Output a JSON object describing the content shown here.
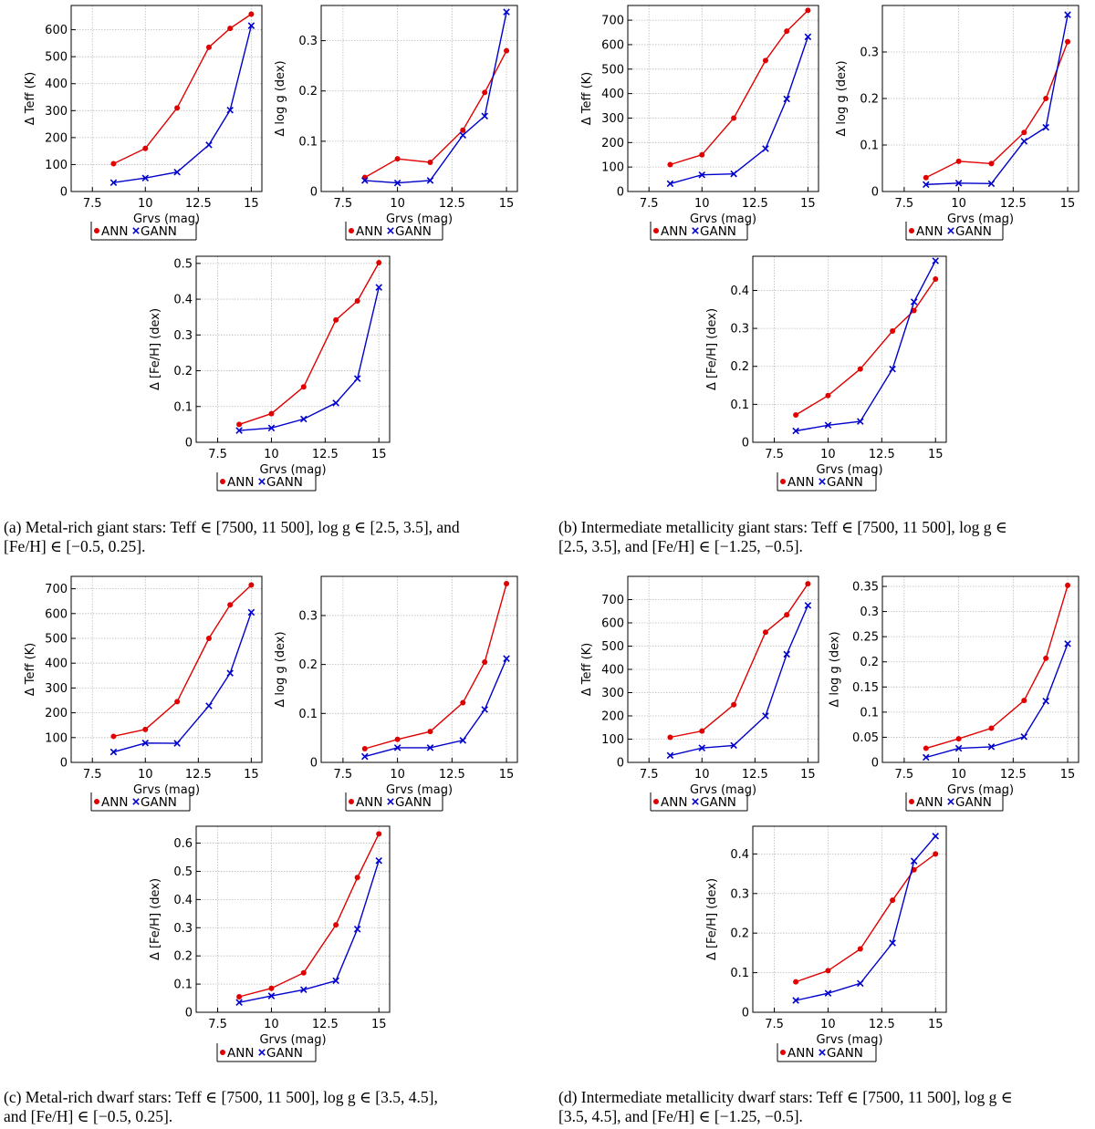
{
  "colors": {
    "ann": "#e00000",
    "gann": "#0000cc",
    "grid": "#bbbbbb",
    "axis": "#000000"
  },
  "captions": {
    "a": [
      "(a) Metal-rich giant stars: Teff ∈ [7500, 11 500], log g ∈ [2.5, 3.5], and",
      "[Fe/H] ∈ [−0.5, 0.25]."
    ],
    "b": [
      "(b) Intermediate metallicity giant stars: Teff ∈ [7500, 11 500], log g ∈",
      "[2.5, 3.5], and [Fe/H] ∈ [−1.25, −0.5]."
    ],
    "c": [
      "(c) Metal-rich dwarf stars: Teff ∈ [7500, 11 500], log g ∈ [3.5, 4.5],",
      "and [Fe/H] ∈ [−0.5, 0.25]."
    ],
    "d": [
      "(d) Intermediate metallicity dwarf stars: Teff ∈ [7500, 11 500], log g ∈",
      "[3.5, 4.5], and [Fe/H] ∈ [−1.25, −0.5]."
    ]
  },
  "chart_data": [
    {
      "id": "a-teff",
      "panel": "a",
      "type": "line",
      "xlabel": "Grvs (mag)",
      "ylabel": "Δ Teff (K)",
      "xlim": [
        6.5,
        15.5
      ],
      "ylim": [
        0,
        690
      ],
      "xticks": [
        7.5,
        10,
        12.5,
        15
      ],
      "xtick_labels": [
        "7.5",
        "10",
        "12.5",
        "15"
      ],
      "yticks": [
        0,
        100,
        200,
        300,
        400,
        500,
        600
      ],
      "ytick_labels": [
        "0",
        "100",
        "200",
        "300",
        "400",
        "500",
        "600"
      ],
      "x": [
        8.5,
        10,
        11.5,
        13,
        14,
        15
      ],
      "series": [
        {
          "name": "ANN",
          "values": [
            103,
            160,
            310,
            535,
            605,
            658
          ]
        },
        {
          "name": "GANN",
          "values": [
            33,
            50,
            72,
            173,
            302,
            615
          ]
        }
      ],
      "legend": [
        "ANN",
        "GANN"
      ]
    },
    {
      "id": "a-logg",
      "panel": "a",
      "type": "line",
      "xlabel": "Grvs (mag)",
      "ylabel": "Δ log g (dex)",
      "xlim": [
        6.5,
        15.5
      ],
      "ylim": [
        0,
        0.37
      ],
      "xticks": [
        7.5,
        10,
        12.5,
        15
      ],
      "xtick_labels": [
        "7.5",
        "10",
        "12.5",
        "15"
      ],
      "yticks": [
        0,
        0.1,
        0.2,
        0.3
      ],
      "ytick_labels": [
        "0",
        "0.1",
        "0.2",
        "0.3"
      ],
      "x": [
        8.5,
        10,
        11.5,
        13,
        14,
        15
      ],
      "series": [
        {
          "name": "ANN",
          "values": [
            0.028,
            0.065,
            0.058,
            0.122,
            0.197,
            0.28
          ]
        },
        {
          "name": "GANN",
          "values": [
            0.022,
            0.017,
            0.022,
            0.112,
            0.15,
            0.357
          ]
        }
      ],
      "legend": [
        "ANN",
        "GANN"
      ]
    },
    {
      "id": "a-feh",
      "panel": "a",
      "type": "line",
      "xlabel": "Grvs (mag)",
      "ylabel": "Δ [Fe/H] (dex)",
      "xlim": [
        6.5,
        15.5
      ],
      "ylim": [
        0,
        0.52
      ],
      "xticks": [
        7.5,
        10,
        12.5,
        15
      ],
      "xtick_labels": [
        "7.5",
        "10",
        "12.5",
        "15"
      ],
      "yticks": [
        0,
        0.1,
        0.2,
        0.3,
        0.4,
        0.5
      ],
      "ytick_labels": [
        "0",
        "0.1",
        "0.2",
        "0.3",
        "0.4",
        "0.5"
      ],
      "x": [
        8.5,
        10,
        11.5,
        13,
        14,
        15
      ],
      "series": [
        {
          "name": "ANN",
          "values": [
            0.05,
            0.08,
            0.155,
            0.342,
            0.395,
            0.502
          ]
        },
        {
          "name": "GANN",
          "values": [
            0.033,
            0.04,
            0.065,
            0.11,
            0.178,
            0.433
          ]
        }
      ],
      "legend": [
        "ANN",
        "GANN"
      ]
    },
    {
      "id": "b-teff",
      "panel": "b",
      "type": "line",
      "xlabel": "Grvs (mag)",
      "ylabel": "Δ Teff (K)",
      "xlim": [
        6.5,
        15.5
      ],
      "ylim": [
        0,
        760
      ],
      "xticks": [
        7.5,
        10,
        12.5,
        15
      ],
      "xtick_labels": [
        "7.5",
        "10",
        "12.5",
        "15"
      ],
      "yticks": [
        0,
        100,
        200,
        300,
        400,
        500,
        600,
        700
      ],
      "ytick_labels": [
        "0",
        "100",
        "200",
        "300",
        "400",
        "500",
        "600",
        "700"
      ],
      "x": [
        8.5,
        10,
        11.5,
        13,
        14,
        15
      ],
      "series": [
        {
          "name": "ANN",
          "values": [
            110,
            150,
            300,
            535,
            655,
            740
          ]
        },
        {
          "name": "GANN",
          "values": [
            32,
            68,
            72,
            175,
            378,
            632
          ]
        }
      ],
      "legend": [
        "ANN",
        "GANN"
      ]
    },
    {
      "id": "b-logg",
      "panel": "b",
      "type": "line",
      "xlabel": "Grvs (mag)",
      "ylabel": "Δ log g (dex)",
      "xlim": [
        6.5,
        15.5
      ],
      "ylim": [
        0,
        0.4
      ],
      "xticks": [
        7.5,
        10,
        12.5,
        15
      ],
      "xtick_labels": [
        "7.5",
        "10",
        "12.5",
        "15"
      ],
      "yticks": [
        0,
        0.1,
        0.2,
        0.3
      ],
      "ytick_labels": [
        "0",
        "0.1",
        "0.2",
        "0.3"
      ],
      "x": [
        8.5,
        10,
        11.5,
        13,
        14,
        15
      ],
      "series": [
        {
          "name": "ANN",
          "values": [
            0.03,
            0.065,
            0.06,
            0.127,
            0.2,
            0.322
          ]
        },
        {
          "name": "GANN",
          "values": [
            0.015,
            0.018,
            0.017,
            0.108,
            0.138,
            0.38
          ]
        }
      ],
      "legend": [
        "ANN",
        "GANN"
      ]
    },
    {
      "id": "b-feh",
      "panel": "b",
      "type": "line",
      "xlabel": "Grvs (mag)",
      "ylabel": "Δ [Fe/H] (dex)",
      "xlim": [
        6.5,
        15.5
      ],
      "ylim": [
        0,
        0.49
      ],
      "xticks": [
        7.5,
        10,
        12.5,
        15
      ],
      "xtick_labels": [
        "7.5",
        "10",
        "12.5",
        "15"
      ],
      "yticks": [
        0,
        0.1,
        0.2,
        0.3,
        0.4
      ],
      "ytick_labels": [
        "0",
        "0.1",
        "0.2",
        "0.3",
        "0.4"
      ],
      "x": [
        8.5,
        10,
        11.5,
        13,
        14,
        15
      ],
      "series": [
        {
          "name": "ANN",
          "values": [
            0.072,
            0.123,
            0.193,
            0.293,
            0.347,
            0.43
          ]
        },
        {
          "name": "GANN",
          "values": [
            0.03,
            0.045,
            0.055,
            0.193,
            0.37,
            0.478
          ]
        }
      ],
      "legend": [
        "ANN",
        "GANN"
      ]
    },
    {
      "id": "c-teff",
      "panel": "c",
      "type": "line",
      "xlabel": "Grvs (mag)",
      "ylabel": "Δ Teff (K)",
      "xlim": [
        6.5,
        15.5
      ],
      "ylim": [
        0,
        750
      ],
      "xticks": [
        7.5,
        10,
        12.5,
        15
      ],
      "xtick_labels": [
        "7.5",
        "10",
        "12.5",
        "15"
      ],
      "yticks": [
        0,
        100,
        200,
        300,
        400,
        500,
        600,
        700
      ],
      "ytick_labels": [
        "0",
        "100",
        "200",
        "300",
        "400",
        "500",
        "600",
        "700"
      ],
      "x": [
        8.5,
        10,
        11.5,
        13,
        14,
        15
      ],
      "series": [
        {
          "name": "ANN",
          "values": [
            105,
            133,
            245,
            500,
            635,
            715
          ]
        },
        {
          "name": "GANN",
          "values": [
            42,
            78,
            77,
            228,
            360,
            605
          ]
        }
      ],
      "legend": [
        "ANN",
        "GANN"
      ]
    },
    {
      "id": "c-logg",
      "panel": "c",
      "type": "line",
      "xlabel": "Grvs (mag)",
      "ylabel": "Δ log g (dex)",
      "xlim": [
        6.5,
        15.5
      ],
      "ylim": [
        0,
        0.38
      ],
      "xticks": [
        7.5,
        10,
        12.5,
        15
      ],
      "xtick_labels": [
        "7.5",
        "10",
        "12.5",
        "15"
      ],
      "yticks": [
        0,
        0.1,
        0.2,
        0.3
      ],
      "ytick_labels": [
        "0",
        "0.1",
        "0.2",
        "0.3"
      ],
      "x": [
        8.5,
        10,
        11.5,
        13,
        14,
        15
      ],
      "series": [
        {
          "name": "ANN",
          "values": [
            0.028,
            0.047,
            0.063,
            0.122,
            0.205,
            0.365
          ]
        },
        {
          "name": "GANN",
          "values": [
            0.012,
            0.03,
            0.03,
            0.045,
            0.108,
            0.212
          ]
        }
      ],
      "legend": [
        "ANN",
        "GANN"
      ]
    },
    {
      "id": "c-feh",
      "panel": "c",
      "type": "line",
      "xlabel": "Grvs (mag)",
      "ylabel": "Δ [Fe/H] (dex)",
      "xlim": [
        6.5,
        15.5
      ],
      "ylim": [
        0,
        0.66
      ],
      "xticks": [
        7.5,
        10,
        12.5,
        15
      ],
      "xtick_labels": [
        "7.5",
        "10",
        "12.5",
        "15"
      ],
      "yticks": [
        0,
        0.1,
        0.2,
        0.3,
        0.4,
        0.5,
        0.6
      ],
      "ytick_labels": [
        "0",
        "0.1",
        "0.2",
        "0.3",
        "0.4",
        "0.5",
        "0.6"
      ],
      "x": [
        8.5,
        10,
        11.5,
        13,
        14,
        15
      ],
      "series": [
        {
          "name": "ANN",
          "values": [
            0.055,
            0.085,
            0.14,
            0.31,
            0.478,
            0.633
          ]
        },
        {
          "name": "GANN",
          "values": [
            0.035,
            0.058,
            0.08,
            0.112,
            0.295,
            0.538
          ]
        }
      ],
      "legend": [
        "ANN",
        "GANN"
      ]
    },
    {
      "id": "d-teff",
      "panel": "d",
      "type": "line",
      "xlabel": "Grvs (mag)",
      "ylabel": "Δ Teff (K)",
      "xlim": [
        6.5,
        15.5
      ],
      "ylim": [
        0,
        800
      ],
      "xticks": [
        7.5,
        10,
        12.5,
        15
      ],
      "xtick_labels": [
        "7.5",
        "10",
        "12.5",
        "15"
      ],
      "yticks": [
        0,
        100,
        200,
        300,
        400,
        500,
        600,
        700
      ],
      "ytick_labels": [
        "0",
        "100",
        "200",
        "300",
        "400",
        "500",
        "600",
        "700"
      ],
      "x": [
        8.5,
        10,
        11.5,
        13,
        14,
        15
      ],
      "series": [
        {
          "name": "ANN",
          "values": [
            108,
            135,
            248,
            560,
            635,
            768
          ]
        },
        {
          "name": "GANN",
          "values": [
            30,
            62,
            73,
            200,
            465,
            675
          ]
        }
      ],
      "legend": [
        "ANN",
        "GANN"
      ]
    },
    {
      "id": "d-logg",
      "panel": "d",
      "type": "line",
      "xlabel": "Grvs (mag)",
      "ylabel": "Δ log g (dex)",
      "xlim": [
        6.5,
        15.5
      ],
      "ylim": [
        0,
        0.37
      ],
      "xticks": [
        7.5,
        10,
        12.5,
        15
      ],
      "xtick_labels": [
        "7.5",
        "10",
        "12.5",
        "15"
      ],
      "yticks": [
        0,
        0.05,
        0.1,
        0.15,
        0.2,
        0.25,
        0.3,
        0.35
      ],
      "ytick_labels": [
        "0",
        "0.05",
        "0.1",
        "0.15",
        "0.2",
        "0.25",
        "0.3",
        "0.35"
      ],
      "x": [
        8.5,
        10,
        11.5,
        13,
        14,
        15
      ],
      "series": [
        {
          "name": "ANN",
          "values": [
            0.028,
            0.047,
            0.068,
            0.123,
            0.207,
            0.352
          ]
        },
        {
          "name": "GANN",
          "values": [
            0.01,
            0.028,
            0.031,
            0.051,
            0.122,
            0.236
          ]
        }
      ],
      "legend": [
        "ANN",
        "GANN"
      ]
    },
    {
      "id": "d-feh",
      "panel": "d",
      "type": "line",
      "xlabel": "Grvs (mag)",
      "ylabel": "Δ [Fe/H] (dex)",
      "xlim": [
        6.5,
        15.5
      ],
      "ylim": [
        0,
        0.47
      ],
      "xticks": [
        7.5,
        10,
        12.5,
        15
      ],
      "xtick_labels": [
        "7.5",
        "10",
        "12.5",
        "15"
      ],
      "yticks": [
        0,
        0.1,
        0.2,
        0.3,
        0.4
      ],
      "ytick_labels": [
        "0",
        "0.1",
        "0.2",
        "0.3",
        "0.4"
      ],
      "x": [
        8.5,
        10,
        11.5,
        13,
        14,
        15
      ],
      "series": [
        {
          "name": "ANN",
          "values": [
            0.077,
            0.105,
            0.16,
            0.283,
            0.36,
            0.4
          ]
        },
        {
          "name": "GANN",
          "values": [
            0.03,
            0.048,
            0.073,
            0.175,
            0.382,
            0.445
          ]
        }
      ],
      "legend": [
        "ANN",
        "GANN"
      ]
    }
  ]
}
